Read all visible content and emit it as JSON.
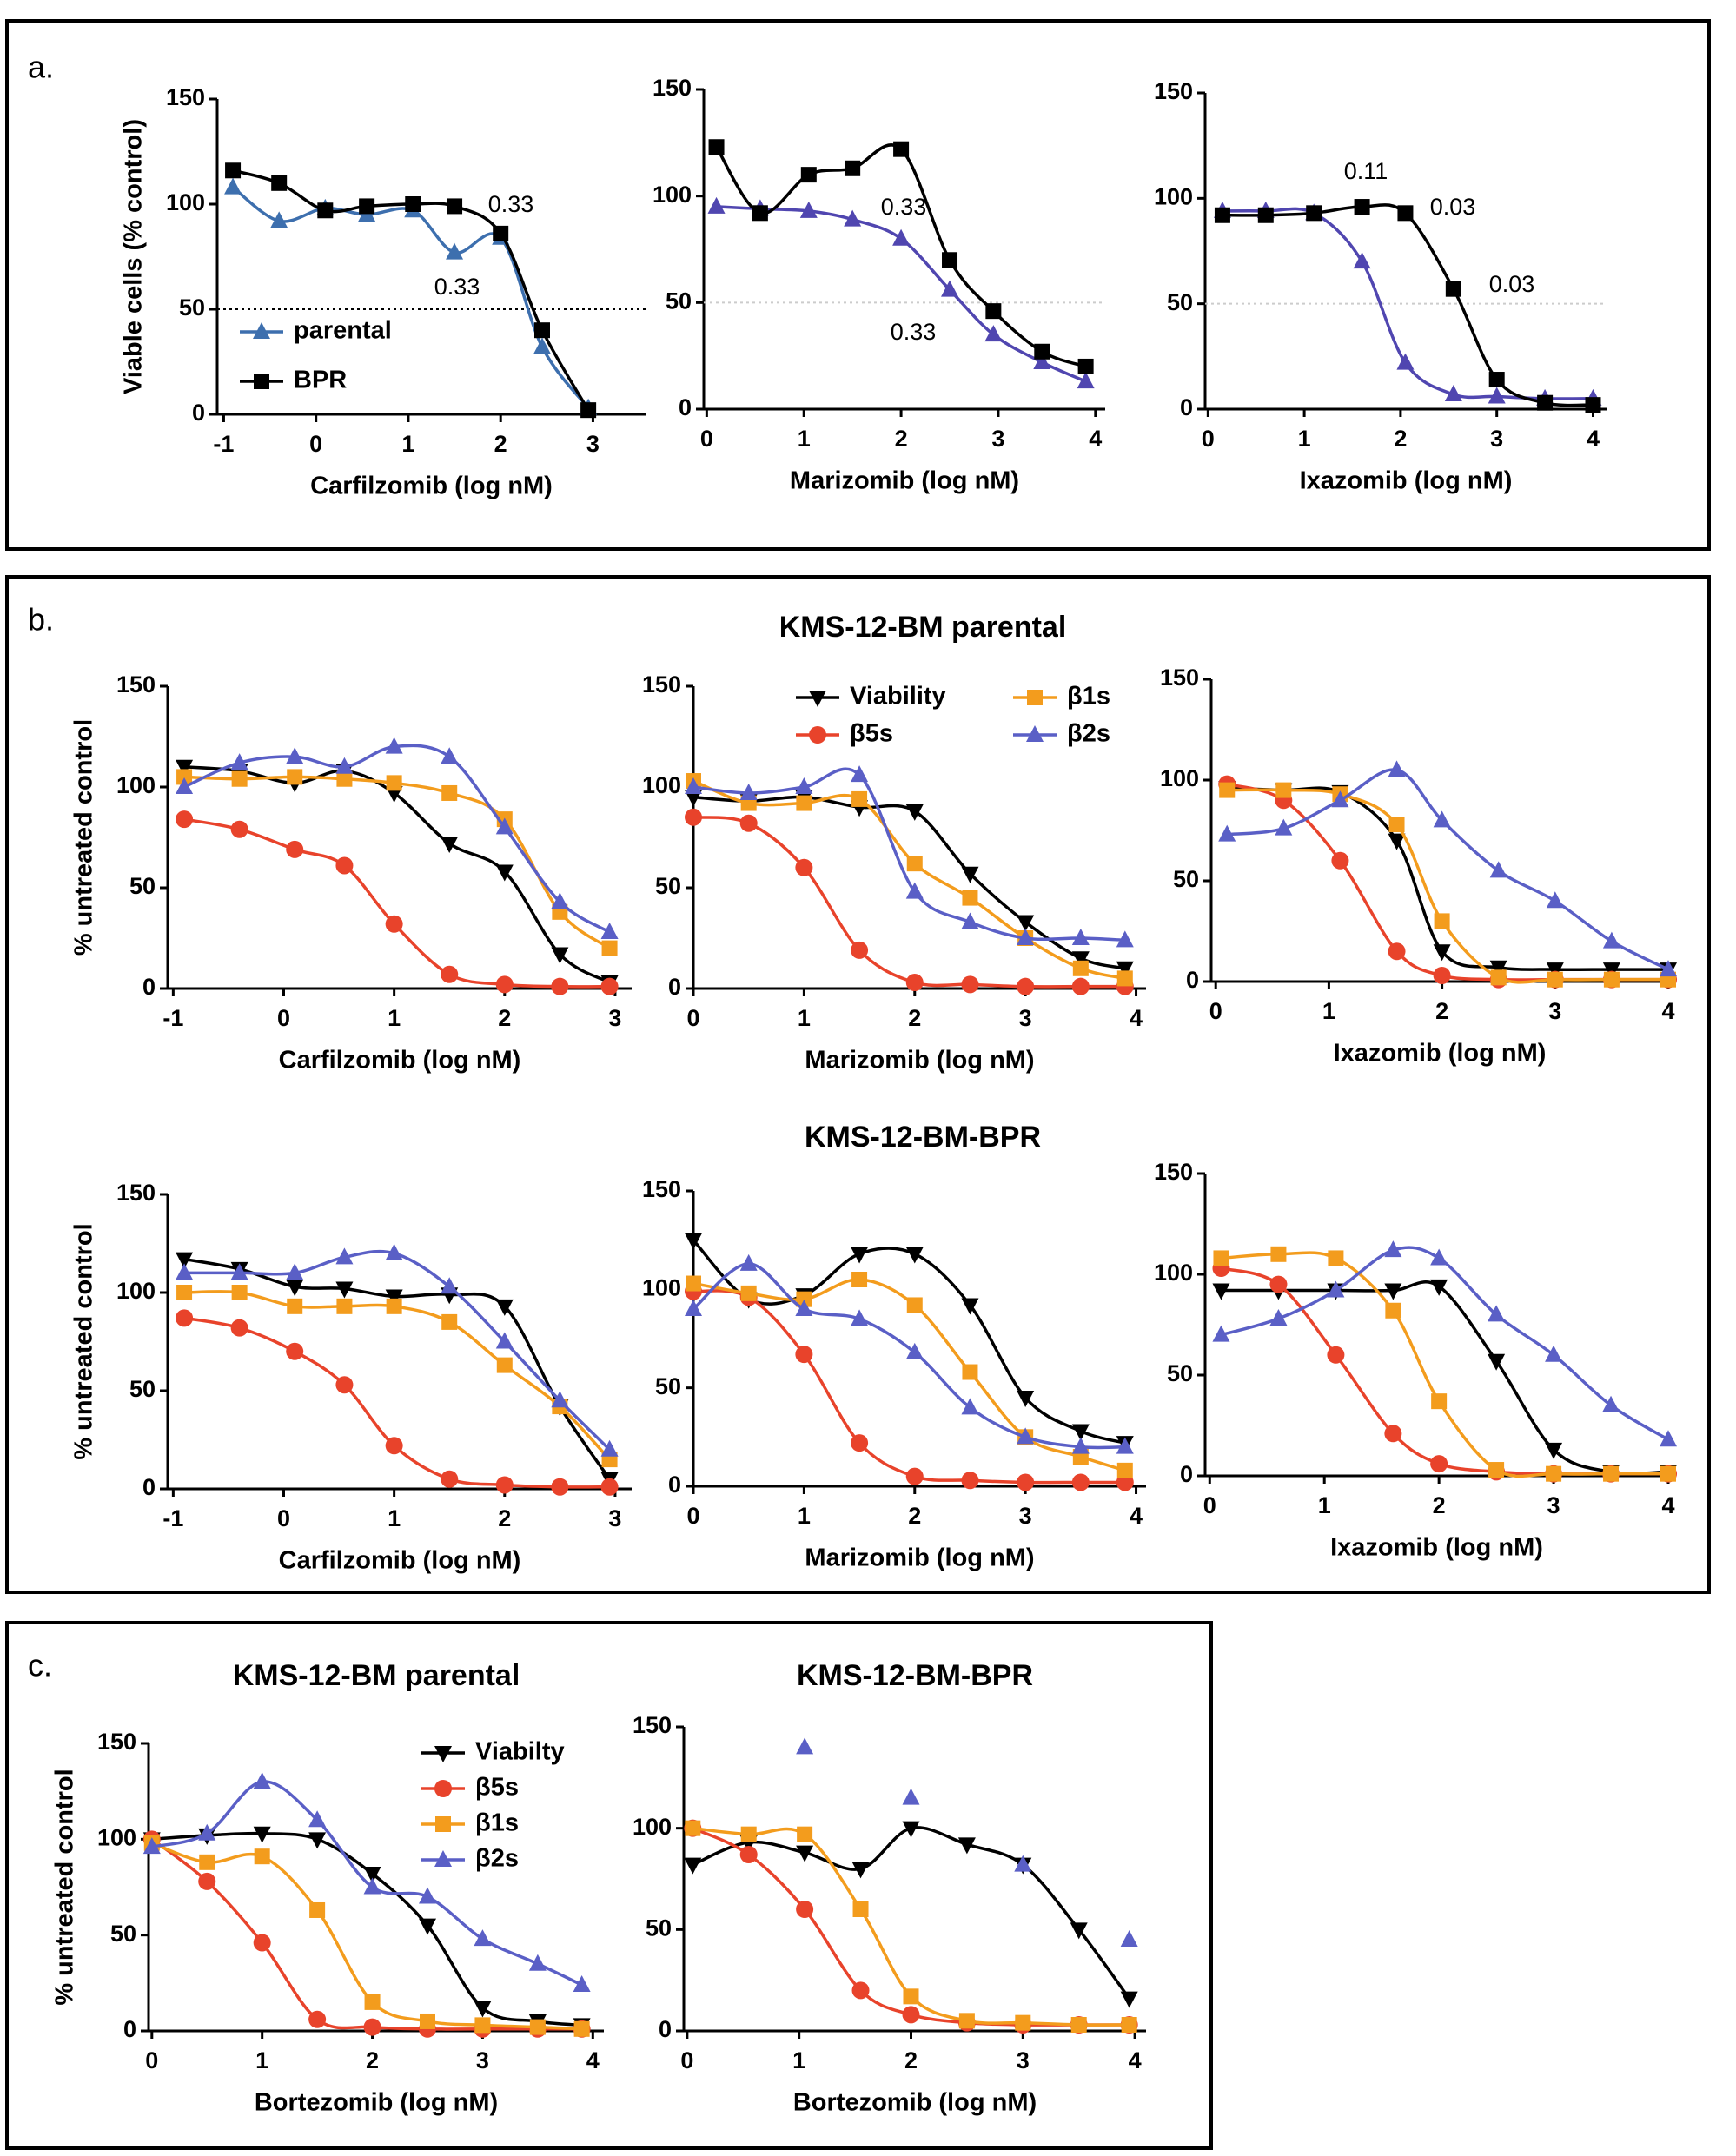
{
  "figure": {
    "labels": [
      "a.",
      "b.",
      "c."
    ],
    "titles": [
      "KMS-12-BM parental",
      "KMS-12-BM-BPR"
    ]
  },
  "chart_data": [
    {
      "type": "line",
      "ylabel": "Viable cells (% control)",
      "xlabel": "Carfilzomib (log nM)",
      "xlim": [
        -1.07,
        3.57
      ],
      "ylim": [
        0,
        150
      ],
      "xticks": [
        -1,
        0,
        1,
        2,
        3
      ],
      "yticks": [
        0,
        50,
        100,
        150
      ],
      "hline": 50,
      "hline_color": "#000",
      "legend": "lower left",
      "annotations": [
        "0.33",
        "0.33"
      ],
      "x": [
        -0.9,
        -0.4,
        0.1,
        0.55,
        1.05,
        1.5,
        2.0,
        2.45,
        2.95
      ],
      "series": [
        {
          "name": "parental",
          "color": "#3d6fae",
          "marker": "triangle",
          "values": [
            108,
            92,
            98,
            95,
            97,
            77,
            84,
            32,
            3
          ]
        },
        {
          "name": "BPR",
          "color": "#000000",
          "marker": "square",
          "values": [
            116,
            110,
            97,
            99,
            100,
            99,
            86,
            40,
            2
          ]
        }
      ]
    },
    {
      "type": "line",
      "xlabel": "Marizomib (log nM)",
      "xlim": [
        -0.03,
        4.1
      ],
      "ylim": [
        0,
        150
      ],
      "xticks": [
        0,
        1,
        2,
        3,
        4
      ],
      "yticks": [
        0,
        50,
        100,
        150
      ],
      "hline": 50,
      "hline_color": "#cccccc",
      "annotations": [
        "0.33",
        "0.33"
      ],
      "x": [
        0.1,
        0.55,
        1.05,
        1.5,
        2.0,
        2.5,
        2.95,
        3.45,
        3.9
      ],
      "series": [
        {
          "name": "parental",
          "color": "#5046b0",
          "marker": "triangle",
          "values": [
            95,
            94,
            93,
            89,
            80,
            56,
            35,
            22,
            13
          ]
        },
        {
          "name": "BPR",
          "color": "#000000",
          "marker": "square",
          "values": [
            123,
            92,
            110,
            113,
            122,
            70,
            46,
            27,
            20
          ]
        }
      ]
    },
    {
      "type": "line",
      "xlabel": "Ixazomib (log nM)",
      "xlim": [
        -0.03,
        4.14
      ],
      "ylim": [
        0,
        150
      ],
      "xticks": [
        0,
        1,
        2,
        3,
        4
      ],
      "yticks": [
        0,
        50,
        100,
        150
      ],
      "hline": 50,
      "hline_color": "#cccccc",
      "annotations": [
        "0.11",
        "0.03",
        "0.03"
      ],
      "x": [
        0.15,
        0.6,
        1.1,
        1.6,
        2.05,
        2.55,
        3.0,
        3.5,
        4.0
      ],
      "series": [
        {
          "name": "parental",
          "color": "#5046b0",
          "marker": "triangle",
          "values": [
            94,
            94,
            93,
            70,
            22,
            7,
            6,
            5,
            5
          ]
        },
        {
          "name": "BPR",
          "color": "#000000",
          "marker": "square",
          "values": [
            92,
            92,
            93,
            96,
            93,
            57,
            14,
            3,
            2
          ]
        }
      ]
    },
    {
      "type": "line",
      "ylabel": "% untreated control",
      "xlabel": "Carfilzomib (log nM)",
      "xlim": [
        -1.05,
        3.15
      ],
      "ylim": [
        0,
        150
      ],
      "xticks": [
        -1,
        0,
        1,
        2,
        3
      ],
      "yticks": [
        0,
        50,
        100,
        150
      ],
      "x": [
        -0.9,
        -0.4,
        0.1,
        0.55,
        1.0,
        1.5,
        2.0,
        2.5,
        2.95
      ],
      "series": [
        {
          "name": "Viability",
          "color": "#000000",
          "marker": "triangle-down",
          "values": [
            110,
            108,
            102,
            108,
            97,
            72,
            58,
            17,
            3
          ]
        },
        {
          "name": "β5s",
          "color": "#e8432b",
          "marker": "circle",
          "values": [
            84,
            79,
            69,
            61,
            32,
            7,
            2,
            1,
            1
          ]
        },
        {
          "name": "β1s",
          "color": "#f39c1d",
          "marker": "square",
          "values": [
            105,
            104,
            105,
            104,
            102,
            97,
            84,
            38,
            20
          ]
        },
        {
          "name": "β2s",
          "color": "#5a5fc6",
          "marker": "triangle",
          "values": [
            100,
            112,
            115,
            110,
            120,
            115,
            80,
            43,
            28
          ]
        }
      ]
    },
    {
      "type": "line",
      "xlabel": "Marizomib (log nM)",
      "xlim": [
        0,
        4.09
      ],
      "ylim": [
        0,
        150
      ],
      "xticks": [
        0,
        1,
        2,
        3,
        4
      ],
      "yticks": [
        0,
        50,
        100,
        150
      ],
      "legend": "top",
      "x": [
        0,
        0.5,
        1,
        1.5,
        2,
        2.5,
        3,
        3.5,
        3.9
      ],
      "series": [
        {
          "name": "Viability",
          "color": "#000000",
          "marker": "triangle-down",
          "values": [
            95,
            93,
            95,
            90,
            88,
            57,
            33,
            15,
            10
          ]
        },
        {
          "name": "β5s",
          "color": "#e8432b",
          "marker": "circle",
          "values": [
            85,
            82,
            60,
            19,
            3,
            2,
            1,
            1,
            1
          ]
        },
        {
          "name": "β1s",
          "color": "#f39c1d",
          "marker": "square",
          "values": [
            103,
            92,
            92,
            94,
            62,
            45,
            25,
            10,
            5
          ]
        },
        {
          "name": "β2s",
          "color": "#5a5fc6",
          "marker": "triangle",
          "values": [
            100,
            97,
            100,
            106,
            48,
            33,
            25,
            25,
            24
          ]
        }
      ]
    },
    {
      "type": "line",
      "xlabel": "Ixazomib (log nM)",
      "xlim": [
        -0.04,
        4.0
      ],
      "ylim": [
        0,
        150
      ],
      "xticks": [
        0,
        1,
        2,
        3,
        4
      ],
      "yticks": [
        0,
        50,
        100,
        150
      ],
      "x": [
        0.1,
        0.6,
        1.1,
        1.6,
        2.0,
        2.5,
        3.0,
        3.5,
        4.0
      ],
      "series": [
        {
          "name": "Viability",
          "color": "#000000",
          "marker": "triangle-down",
          "values": [
            96,
            95,
            94,
            70,
            15,
            7,
            6,
            6,
            6
          ]
        },
        {
          "name": "β5s",
          "color": "#e8432b",
          "marker": "circle",
          "values": [
            98,
            90,
            60,
            15,
            3,
            1,
            1,
            1,
            1
          ]
        },
        {
          "name": "β1s",
          "color": "#f39c1d",
          "marker": "square",
          "values": [
            95,
            95,
            93,
            78,
            30,
            2,
            1,
            1,
            1
          ]
        },
        {
          "name": "β2s",
          "color": "#5a5fc6",
          "marker": "triangle",
          "values": [
            73,
            76,
            90,
            105,
            80,
            55,
            40,
            20,
            6
          ]
        }
      ]
    },
    {
      "type": "line",
      "ylabel": "% untreated control",
      "xlabel": "Carfilzomib (log nM)",
      "xlim": [
        -1.05,
        3.15
      ],
      "ylim": [
        0,
        150
      ],
      "xticks": [
        -1,
        0,
        1,
        2,
        3
      ],
      "yticks": [
        0,
        50,
        100,
        150
      ],
      "x": [
        -0.9,
        -0.4,
        0.1,
        0.55,
        1.0,
        1.5,
        2.0,
        2.5,
        2.95
      ],
      "series": [
        {
          "name": "Viability",
          "color": "#000000",
          "marker": "triangle-down",
          "values": [
            117,
            112,
            103,
            102,
            98,
            99,
            93,
            42,
            5
          ]
        },
        {
          "name": "β5s",
          "color": "#e8432b",
          "marker": "circle",
          "values": [
            87,
            82,
            70,
            53,
            22,
            5,
            2,
            1,
            1
          ]
        },
        {
          "name": "β1s",
          "color": "#f39c1d",
          "marker": "square",
          "values": [
            100,
            100,
            93,
            93,
            93,
            85,
            63,
            42,
            15
          ]
        },
        {
          "name": "β2s",
          "color": "#5a5fc6",
          "marker": "triangle",
          "values": [
            110,
            110,
            110,
            118,
            120,
            103,
            75,
            45,
            20
          ]
        }
      ]
    },
    {
      "type": "line",
      "xlabel": "Marizomib (log nM)",
      "xlim": [
        0,
        4.09
      ],
      "ylim": [
        0,
        150
      ],
      "xticks": [
        0,
        1,
        2,
        3,
        4
      ],
      "yticks": [
        0,
        50,
        100,
        150
      ],
      "x": [
        0,
        0.5,
        1,
        1.5,
        2,
        2.5,
        3,
        3.5,
        3.9
      ],
      "series": [
        {
          "name": "Viability",
          "color": "#000000",
          "marker": "triangle-down",
          "values": [
            125,
            95,
            97,
            118,
            118,
            92,
            45,
            28,
            22
          ]
        },
        {
          "name": "β5s",
          "color": "#e8432b",
          "marker": "circle",
          "values": [
            99,
            96,
            67,
            22,
            5,
            3,
            2,
            2,
            2
          ]
        },
        {
          "name": "β1s",
          "color": "#f39c1d",
          "marker": "square",
          "values": [
            103,
            98,
            95,
            105,
            92,
            58,
            25,
            15,
            8
          ]
        },
        {
          "name": "β2s",
          "color": "#5a5fc6",
          "marker": "triangle",
          "values": [
            90,
            113,
            90,
            85,
            68,
            40,
            25,
            20,
            20
          ]
        }
      ]
    },
    {
      "type": "line",
      "xlabel": "Ixazomib (log nM)",
      "xlim": [
        -0.04,
        4.0
      ],
      "ylim": [
        0,
        150
      ],
      "xticks": [
        0,
        1,
        2,
        3,
        4
      ],
      "yticks": [
        0,
        50,
        100,
        150
      ],
      "x": [
        0.1,
        0.6,
        1.1,
        1.6,
        2.0,
        2.5,
        3.0,
        3.5,
        4.0
      ],
      "series": [
        {
          "name": "Viability",
          "color": "#000000",
          "marker": "triangle-down",
          "values": [
            92,
            92,
            92,
            92,
            94,
            57,
            13,
            2,
            2
          ]
        },
        {
          "name": "β5s",
          "color": "#e8432b",
          "marker": "circle",
          "values": [
            103,
            95,
            60,
            21,
            6,
            2,
            1,
            1,
            1
          ]
        },
        {
          "name": "β1s",
          "color": "#f39c1d",
          "marker": "square",
          "values": [
            108,
            110,
            108,
            82,
            37,
            3,
            1,
            1,
            1
          ]
        },
        {
          "name": "β2s",
          "color": "#5a5fc6",
          "marker": "triangle",
          "values": [
            70,
            78,
            92,
            112,
            108,
            80,
            60,
            35,
            18
          ]
        }
      ]
    },
    {
      "type": "line",
      "title": "KMS-12-BM parental",
      "ylabel": "% untreated control",
      "xlabel": "Bortezomib (log nM)",
      "xlim": [
        -0.03,
        4.1
      ],
      "ylim": [
        0,
        150
      ],
      "xticks": [
        0,
        1,
        2,
        3,
        4
      ],
      "yticks": [
        0,
        50,
        100,
        150
      ],
      "legend": "upper right",
      "x": [
        0,
        0.5,
        1,
        1.5,
        2,
        2.5,
        3,
        3.5,
        3.9
      ],
      "series": [
        {
          "name": "Viabilty",
          "color": "#000000",
          "marker": "triangle-down",
          "values": [
            100,
            102,
            103,
            100,
            82,
            55,
            12,
            5,
            3
          ]
        },
        {
          "name": "β5s",
          "color": "#e8432b",
          "marker": "circle",
          "values": [
            100,
            78,
            46,
            6,
            2,
            1,
            1,
            1,
            1
          ]
        },
        {
          "name": "β1s",
          "color": "#f39c1d",
          "marker": "square",
          "values": [
            98,
            88,
            91,
            63,
            15,
            5,
            3,
            2,
            1
          ]
        },
        {
          "name": "β2s",
          "color": "#5a5fc6",
          "marker": "triangle",
          "values": [
            96,
            103,
            130,
            110,
            75,
            70,
            48,
            35,
            24
          ]
        }
      ]
    },
    {
      "type": "line",
      "title": "KMS-12-BM-BPR",
      "xlabel": "Bortezomib (log nM)",
      "xlim": [
        -0.03,
        4.1
      ],
      "ylim": [
        0,
        150
      ],
      "xticks": [
        0,
        1,
        2,
        3,
        4
      ],
      "yticks": [
        0,
        50,
        100,
        150
      ],
      "x": [
        0.05,
        0.55,
        1.05,
        1.55,
        2.0,
        2.5,
        3.0,
        3.5,
        3.95
      ],
      "series": [
        {
          "name": "Viabilty",
          "color": "#000000",
          "marker": "triangle-down",
          "values": [
            82,
            93,
            88,
            80,
            100,
            92,
            82,
            50,
            16
          ]
        },
        {
          "name": "β5s",
          "color": "#e8432b",
          "marker": "circle",
          "values": [
            100,
            87,
            60,
            20,
            8,
            4,
            3,
            3,
            3
          ]
        },
        {
          "name": "β1s",
          "color": "#f39c1d",
          "marker": "square",
          "values": [
            100,
            97,
            97,
            60,
            17,
            5,
            4,
            3,
            3
          ]
        },
        {
          "name": "β2s",
          "color": "#5a5fc6",
          "marker": "triangle",
          "values": [
            null,
            null,
            140,
            null,
            115,
            null,
            82,
            null,
            45
          ]
        }
      ]
    }
  ]
}
